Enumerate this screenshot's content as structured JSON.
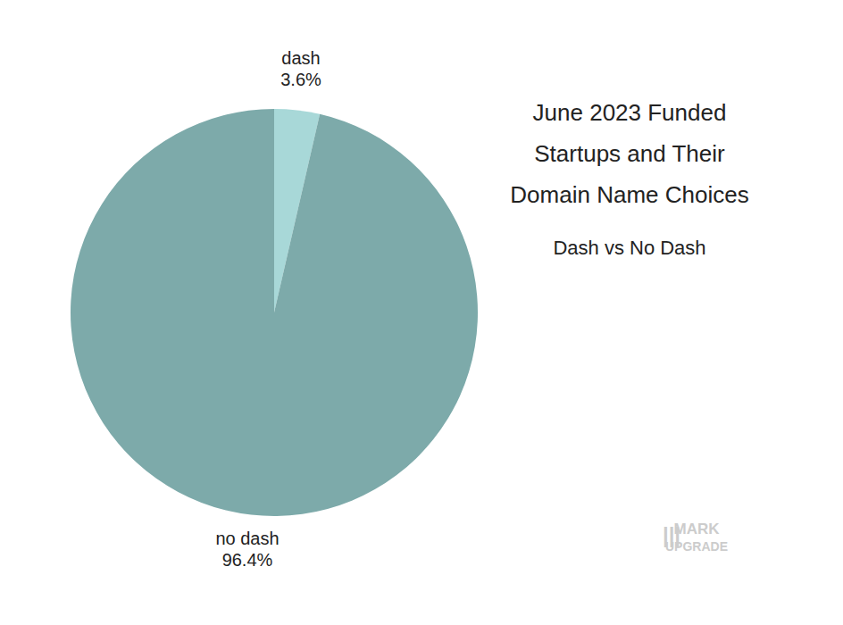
{
  "chart_data": {
    "type": "pie",
    "title": [
      "June 2023 Funded",
      "Startups and Their",
      "Domain Name Choices"
    ],
    "subtitle": "Dash vs No Dash",
    "categories": [
      "dash",
      "no dash"
    ],
    "values": [
      3.6,
      96.4
    ],
    "value_labels": [
      "3.6%",
      "96.4%"
    ],
    "colors": [
      "#a8d8d8",
      "#7daaaa"
    ],
    "data_labels": true,
    "annotations": [
      "|||",
      "MARK",
      "UPGRADE"
    ]
  }
}
